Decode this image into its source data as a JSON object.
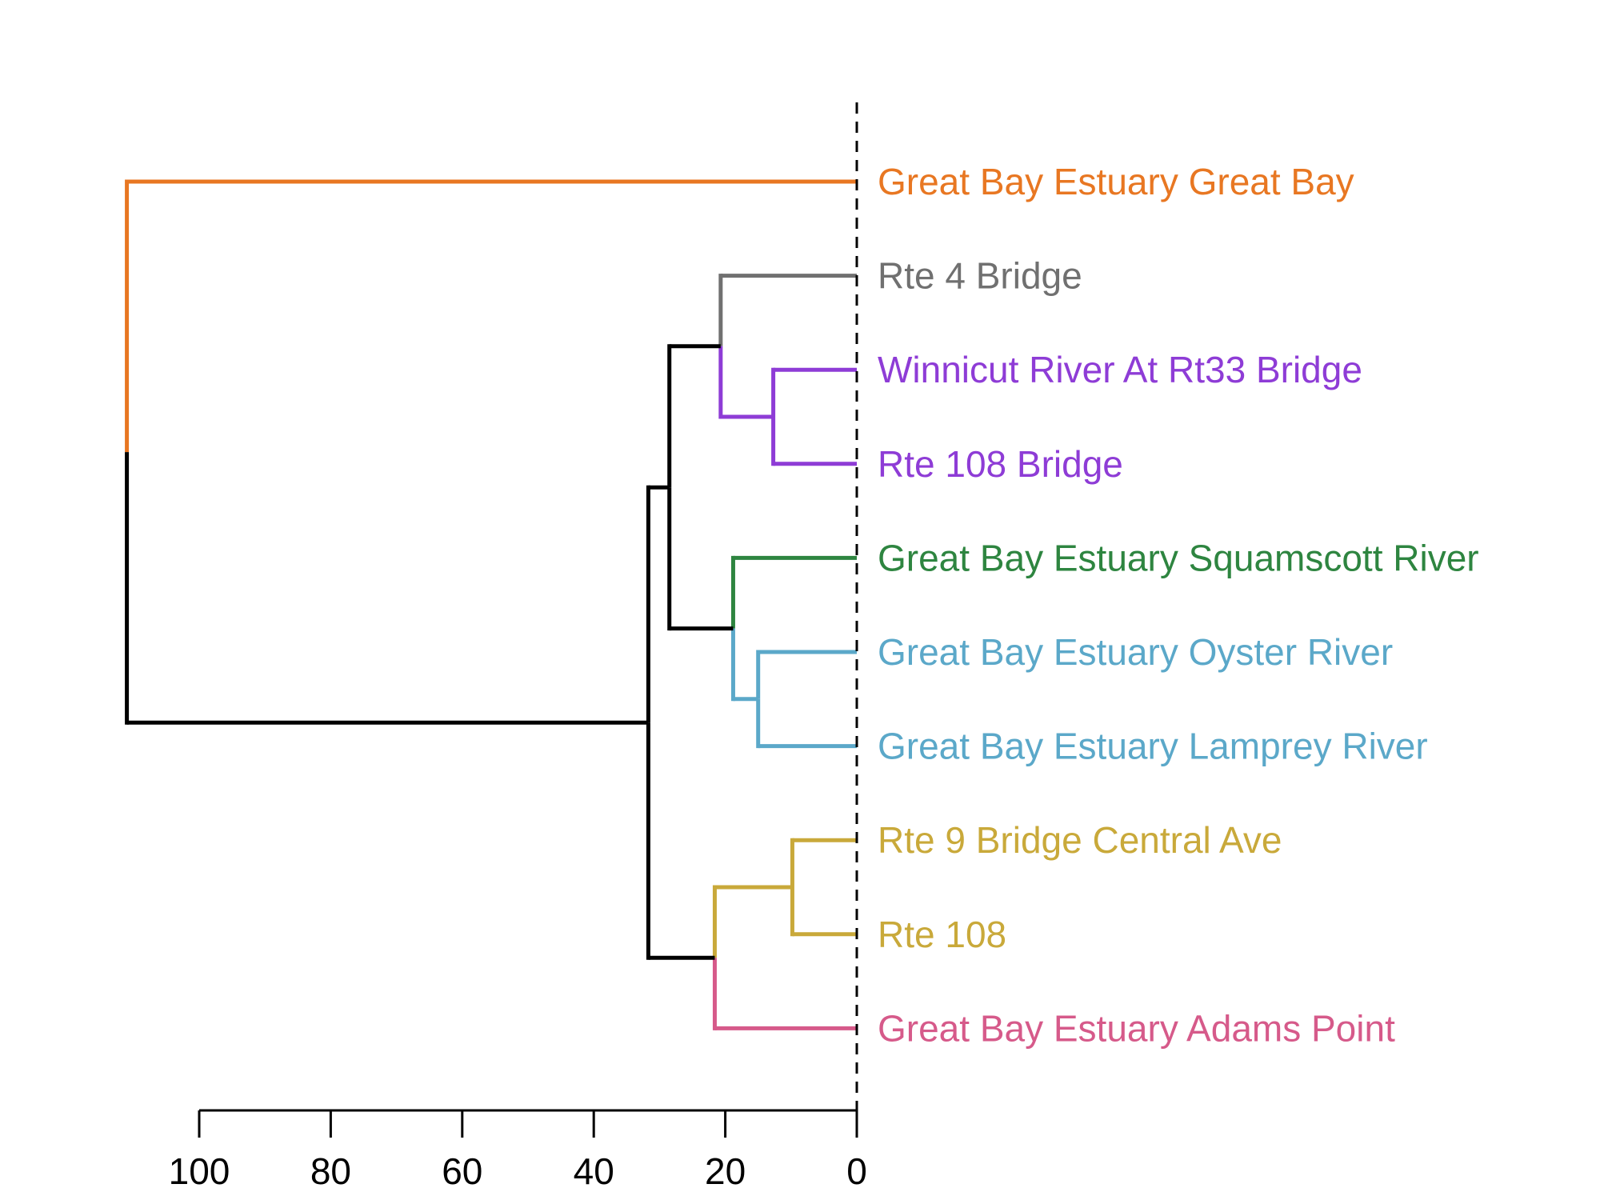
{
  "chart_data": {
    "type": "dendrogram",
    "orientation": "horizontal",
    "axis": {
      "ticks": [
        100,
        80,
        60,
        40,
        20,
        0
      ],
      "range": [
        0,
        100
      ],
      "reversed": true
    },
    "cut_line_value": 0,
    "leaves": [
      {
        "label": "Great Bay Estuary Great Bay",
        "color": "#E87722"
      },
      {
        "label": "Rte 4 Bridge",
        "color": "#707070"
      },
      {
        "label": "Winnicut River At Rt33 Bridge",
        "color": "#8E3CD6"
      },
      {
        "label": "Rte 108 Bridge",
        "color": "#8E3CD6"
      },
      {
        "label": "Great Bay Estuary Squamscott River",
        "color": "#2E8540"
      },
      {
        "label": "Great Bay Estuary Oyster River",
        "color": "#5BA8C9"
      },
      {
        "label": "Great Bay Estuary Lamprey River",
        "color": "#5BA8C9"
      },
      {
        "label": "Rte 9 Bridge Central Ave",
        "color": "#C9A93A"
      },
      {
        "label": "Rte 108",
        "color": "#C9A93A"
      },
      {
        "label": "Great Bay Estuary Adams Point",
        "color": "#D65A8A"
      }
    ],
    "merges": [
      {
        "id": "m1",
        "left": 7,
        "right": 8,
        "height": 9.8,
        "color": "#C9A93A"
      },
      {
        "id": "m2",
        "left": 2,
        "right": 3,
        "height": 12.7,
        "color": "#8E3CD6"
      },
      {
        "id": "m3",
        "left": 5,
        "right": 6,
        "height": 15.0,
        "color": "#5BA8C9"
      },
      {
        "id": "m4",
        "left": 4,
        "right": "m3",
        "height": 18.8,
        "color": [
          "#2E8540",
          "#5BA8C9"
        ]
      },
      {
        "id": "m5",
        "left": 1,
        "right": "m2",
        "height": 20.7,
        "color": [
          "#707070",
          "#8E3CD6"
        ]
      },
      {
        "id": "m6",
        "left": "m1",
        "right": 9,
        "height": 21.6,
        "color": [
          "#C9A93A",
          "#D65A8A"
        ]
      },
      {
        "id": "m7",
        "left": "m5",
        "right": "m4",
        "height": 28.5,
        "color": "#000000"
      },
      {
        "id": "m8",
        "left": "m7",
        "right": "m6",
        "height": 31.7,
        "color": "#000000"
      },
      {
        "id": "m9",
        "left": 0,
        "right": "m8",
        "height": 111.0,
        "color": [
          "#E87722",
          "#000000"
        ]
      }
    ]
  }
}
